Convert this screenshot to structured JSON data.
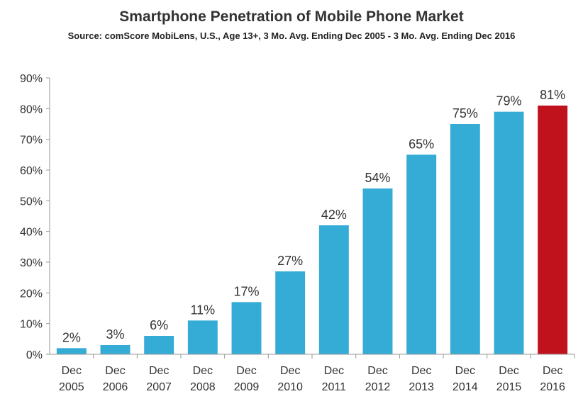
{
  "chart_data": {
    "type": "bar",
    "title": "Smartphone Penetration of Mobile Phone Market",
    "subtitle": "Source: comScore MobiLens, U.S., Age 13+, 3 Mo. Avg. Ending Dec 2005 - 3 Mo. Avg. Ending Dec 2016",
    "categories": [
      [
        "Dec",
        "2005"
      ],
      [
        "Dec",
        "2006"
      ],
      [
        "Dec",
        "2007"
      ],
      [
        "Dec",
        "2008"
      ],
      [
        "Dec",
        "2009"
      ],
      [
        "Dec",
        "2010"
      ],
      [
        "Dec",
        "2011"
      ],
      [
        "Dec",
        "2012"
      ],
      [
        "Dec",
        "2013"
      ],
      [
        "Dec",
        "2014"
      ],
      [
        "Dec",
        "2015"
      ],
      [
        "Dec",
        "2016"
      ]
    ],
    "values": [
      2,
      3,
      6,
      11,
      17,
      27,
      42,
      54,
      65,
      75,
      79,
      81
    ],
    "data_labels": [
      "2%",
      "3%",
      "6%",
      "11%",
      "17%",
      "27%",
      "42%",
      "54%",
      "65%",
      "75%",
      "79%",
      "81%"
    ],
    "y_ticks": [
      "0%",
      "10%",
      "20%",
      "30%",
      "40%",
      "50%",
      "60%",
      "70%",
      "80%",
      "90%"
    ],
    "ylim": [
      0,
      90
    ],
    "grid": false,
    "legend": "none",
    "colors": {
      "default_bar": "#35acd6",
      "highlight_bar": "#c0121c",
      "axis": "#999999"
    },
    "highlight_index": 11
  }
}
